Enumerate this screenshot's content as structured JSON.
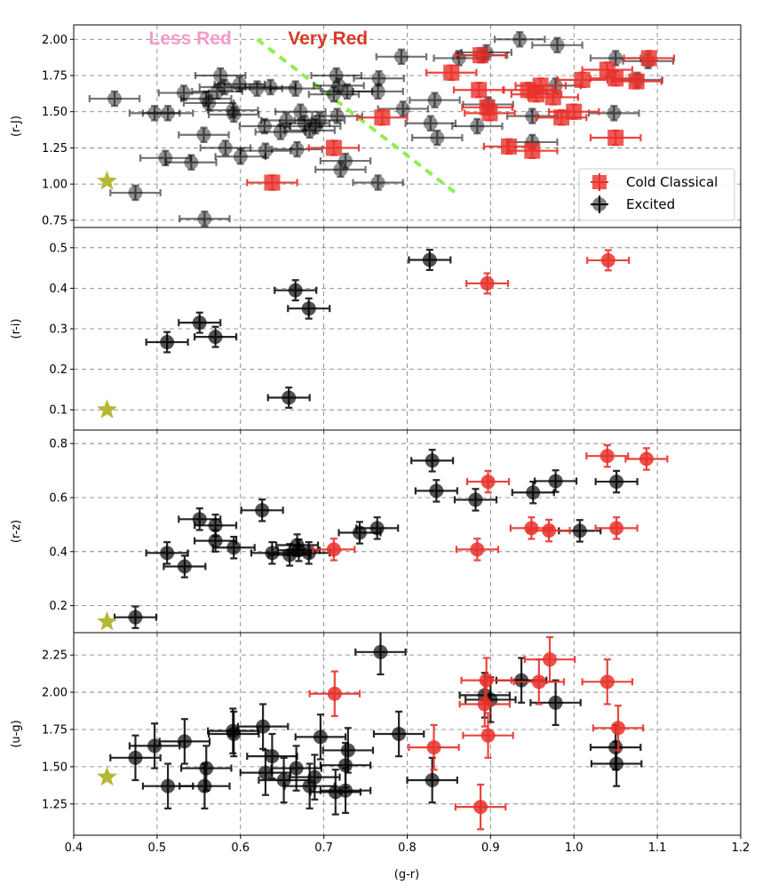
{
  "chart_data": {
    "type": "scatter",
    "xlabel": "(g-r)",
    "xlim": [
      0.4,
      1.2
    ],
    "xticks": [
      "0.4",
      "0.5",
      "0.6",
      "0.7",
      "0.8",
      "0.9",
      "1.0",
      "1.1",
      "1.2"
    ],
    "grid": true,
    "colors": {
      "cold": "#e8312a",
      "excited": "#000000",
      "star": "#b5b836",
      "line": "#90ee50",
      "less_red": "#f49ac9",
      "very_red": "#d93a26"
    },
    "legend": {
      "placement": "lower-right",
      "entries": [
        "Cold Classical",
        "Excited"
      ]
    },
    "annotations": {
      "less_red": "Less Red",
      "very_red": "Very Red"
    },
    "divider_line": [
      [
        0.62,
        2.0
      ],
      [
        0.86,
        0.93
      ]
    ],
    "panels": [
      {
        "ylabel": "(r-J)",
        "ylim": [
          0.7,
          2.1
        ],
        "yticks": [
          "0.75",
          "1.00",
          "1.25",
          "1.50",
          "1.75",
          "2.00"
        ],
        "yticks_values": [
          0.75,
          1.0,
          1.25,
          1.5,
          1.75,
          2.0
        ],
        "excited_alpha": 0.55,
        "err": [
          0.03,
          0.05
        ],
        "star": [
          0.44,
          1.02
        ],
        "excited": [
          [
            0.449,
            1.59
          ],
          [
            0.497,
            1.49
          ],
          [
            0.513,
            1.49
          ],
          [
            0.532,
            1.63
          ],
          [
            0.559,
            1.59
          ],
          [
            0.562,
            1.56
          ],
          [
            0.572,
            1.64
          ],
          [
            0.576,
            1.75
          ],
          [
            0.581,
            1.67
          ],
          [
            0.591,
            1.51
          ],
          [
            0.592,
            1.48
          ],
          [
            0.599,
            1.69
          ],
          [
            0.62,
            1.66
          ],
          [
            0.636,
            1.67
          ],
          [
            0.666,
            1.66
          ],
          [
            0.629,
            1.4
          ],
          [
            0.648,
            1.36
          ],
          [
            0.655,
            1.44
          ],
          [
            0.672,
            1.5
          ],
          [
            0.677,
            1.42
          ],
          [
            0.683,
            1.37
          ],
          [
            0.69,
            1.4
          ],
          [
            0.695,
            1.44
          ],
          [
            0.715,
            1.75
          ],
          [
            0.718,
            1.68
          ],
          [
            0.728,
            1.64
          ],
          [
            0.712,
            1.62
          ],
          [
            0.716,
            1.47
          ],
          [
            0.766,
            1.73
          ],
          [
            0.765,
            1.64
          ],
          [
            0.793,
            1.88
          ],
          [
            0.795,
            1.52
          ],
          [
            0.833,
            1.58
          ],
          [
            0.828,
            1.42
          ],
          [
            0.836,
            1.32
          ],
          [
            0.862,
            1.87
          ],
          [
            0.884,
            1.4
          ],
          [
            0.895,
            1.91
          ],
          [
            0.935,
            2.0
          ],
          [
            0.98,
            1.96
          ],
          [
            0.51,
            1.18
          ],
          [
            0.541,
            1.15
          ],
          [
            0.556,
            1.34
          ],
          [
            0.582,
            1.25
          ],
          [
            0.6,
            1.19
          ],
          [
            0.63,
            1.23
          ],
          [
            0.668,
            1.24
          ],
          [
            0.72,
            1.1
          ],
          [
            0.726,
            1.16
          ],
          [
            0.765,
            1.01
          ],
          [
            0.474,
            0.94
          ],
          [
            0.557,
            0.76
          ],
          [
            0.95,
            1.47
          ],
          [
            0.95,
            1.29
          ],
          [
            0.978,
            1.68
          ],
          [
            1.05,
            1.87
          ],
          [
            1.076,
            1.72
          ],
          [
            1.089,
            1.85
          ],
          [
            1.048,
            1.49
          ],
          [
            0.89,
            1.89
          ],
          [
            0.897,
            1.55
          ]
        ],
        "cold": [
          [
            0.853,
            1.77
          ],
          [
            0.888,
            1.89
          ],
          [
            0.886,
            1.65
          ],
          [
            0.899,
            1.49
          ],
          [
            0.896,
            1.53
          ],
          [
            0.922,
            1.26
          ],
          [
            0.95,
            1.23
          ],
          [
            0.955,
            1.62
          ],
          [
            0.96,
            1.68
          ],
          [
            0.975,
            1.6
          ],
          [
            0.985,
            1.46
          ],
          [
            1.0,
            1.5
          ],
          [
            1.01,
            1.72
          ],
          [
            1.04,
            1.79
          ],
          [
            1.05,
            1.32
          ],
          [
            1.09,
            1.87
          ],
          [
            1.075,
            1.71
          ],
          [
            1.05,
            1.73
          ],
          [
            0.77,
            1.46
          ],
          [
            0.712,
            1.25
          ],
          [
            0.638,
            1.01
          ],
          [
            0.945,
            1.65
          ]
        ]
      },
      {
        "ylabel": "(r-i)",
        "ylim": [
          0.05,
          0.55
        ],
        "yticks": [
          "0.1",
          "0.2",
          "0.3",
          "0.4",
          "0.5"
        ],
        "yticks_values": [
          0.1,
          0.2,
          0.3,
          0.4,
          0.5
        ],
        "excited_alpha": 0.85,
        "err": [
          0.025,
          0.025
        ],
        "star": [
          0.44,
          0.1
        ],
        "excited": [
          [
            0.827,
            0.47
          ],
          [
            0.666,
            0.395
          ],
          [
            0.682,
            0.35
          ],
          [
            0.551,
            0.315
          ],
          [
            0.512,
            0.267
          ],
          [
            0.57,
            0.28
          ],
          [
            0.658,
            0.13
          ]
        ],
        "cold": [
          [
            0.896,
            0.412
          ],
          [
            1.041,
            0.469
          ]
        ]
      },
      {
        "ylabel": "(r-z)",
        "ylim": [
          0.1,
          0.85
        ],
        "yticks": [
          "0.2",
          "0.4",
          "0.6",
          "0.8"
        ],
        "yticks_values": [
          0.2,
          0.4,
          0.6,
          0.8
        ],
        "excited_alpha": 0.85,
        "err": [
          0.025,
          0.04
        ],
        "star": [
          0.44,
          0.14
        ],
        "excited": [
          [
            0.83,
            0.737
          ],
          [
            0.835,
            0.625
          ],
          [
            0.882,
            0.592
          ],
          [
            0.951,
            0.619
          ],
          [
            0.978,
            0.661
          ],
          [
            1.051,
            0.659
          ],
          [
            1.007,
            0.477
          ],
          [
            0.626,
            0.553
          ],
          [
            0.551,
            0.52
          ],
          [
            0.57,
            0.497
          ],
          [
            0.57,
            0.44
          ],
          [
            0.592,
            0.415
          ],
          [
            0.512,
            0.395
          ],
          [
            0.533,
            0.345
          ],
          [
            0.638,
            0.395
          ],
          [
            0.659,
            0.388
          ],
          [
            0.668,
            0.424
          ],
          [
            0.67,
            0.405
          ],
          [
            0.682,
            0.395
          ],
          [
            0.743,
            0.47
          ],
          [
            0.764,
            0.487
          ],
          [
            0.474,
            0.157
          ]
        ],
        "cold": [
          [
            0.897,
            0.659
          ],
          [
            1.04,
            0.754
          ],
          [
            1.087,
            0.743
          ],
          [
            0.949,
            0.487
          ],
          [
            0.97,
            0.478
          ],
          [
            1.051,
            0.487
          ],
          [
            0.884,
            0.408
          ],
          [
            0.712,
            0.408
          ]
        ]
      },
      {
        "ylabel": "(u-g)",
        "ylim": [
          1.04,
          2.4
        ],
        "yticks": [
          "1.25",
          "1.50",
          "1.75",
          "2.00",
          "2.25"
        ],
        "yticks_values": [
          1.25,
          1.5,
          1.75,
          2.0,
          2.25
        ],
        "excited_alpha": 0.85,
        "err": [
          0.03,
          0.15
        ],
        "star": [
          0.44,
          1.43
        ],
        "excited": [
          [
            0.768,
            2.27
          ],
          [
            0.79,
            1.72
          ],
          [
            0.83,
            1.41
          ],
          [
            0.893,
            1.98
          ],
          [
            0.9,
            1.95
          ],
          [
            0.937,
            2.08
          ],
          [
            0.978,
            1.93
          ],
          [
            1.05,
            1.63
          ],
          [
            1.051,
            1.52
          ],
          [
            0.474,
            1.56
          ],
          [
            0.497,
            1.64
          ],
          [
            0.513,
            1.37
          ],
          [
            0.533,
            1.67
          ],
          [
            0.559,
            1.49
          ],
          [
            0.557,
            1.37
          ],
          [
            0.591,
            1.74
          ],
          [
            0.592,
            1.72
          ],
          [
            0.627,
            1.77
          ],
          [
            0.63,
            1.46
          ],
          [
            0.638,
            1.57
          ],
          [
            0.652,
            1.41
          ],
          [
            0.667,
            1.49
          ],
          [
            0.683,
            1.37
          ],
          [
            0.689,
            1.43
          ],
          [
            0.696,
            1.7
          ],
          [
            0.714,
            1.33
          ],
          [
            0.726,
            1.34
          ],
          [
            0.726,
            1.51
          ],
          [
            0.729,
            1.61
          ]
        ],
        "cold": [
          [
            0.713,
            1.99
          ],
          [
            0.832,
            1.63
          ],
          [
            0.888,
            1.23
          ],
          [
            0.893,
            1.92
          ],
          [
            0.895,
            2.08
          ],
          [
            0.897,
            1.71
          ],
          [
            0.971,
            2.22
          ],
          [
            0.958,
            2.07
          ],
          [
            1.04,
            2.07
          ],
          [
            1.053,
            1.76
          ]
        ]
      }
    ]
  }
}
